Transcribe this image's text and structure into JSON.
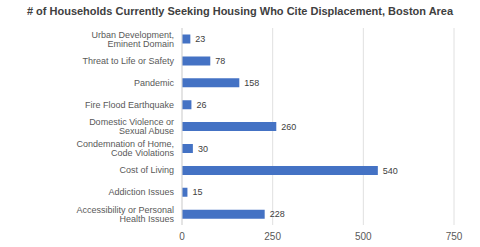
{
  "chart_data": {
    "type": "bar",
    "title": "# of Households Currently Seeking Housing Who Cite Displacement, Boston Area",
    "orientation": "horizontal",
    "categories": [
      "Urban Development, Eminent Domain",
      "Threat to Life or Safety",
      "Pandemic",
      "Fire Flood Earthquake",
      "Domestic Violence or Sexual Abuse",
      "Condemnation of Home, Code Violations",
      "Cost of Living",
      "Addiction Issues",
      "Accessibility or Personal Health Issues"
    ],
    "values": [
      23,
      78,
      158,
      26,
      260,
      30,
      540,
      15,
      228
    ],
    "color": "#4472c4",
    "xlim": [
      0,
      750
    ],
    "xticks": [
      0,
      250,
      500,
      750
    ],
    "grid": true,
    "data_labels": true
  }
}
